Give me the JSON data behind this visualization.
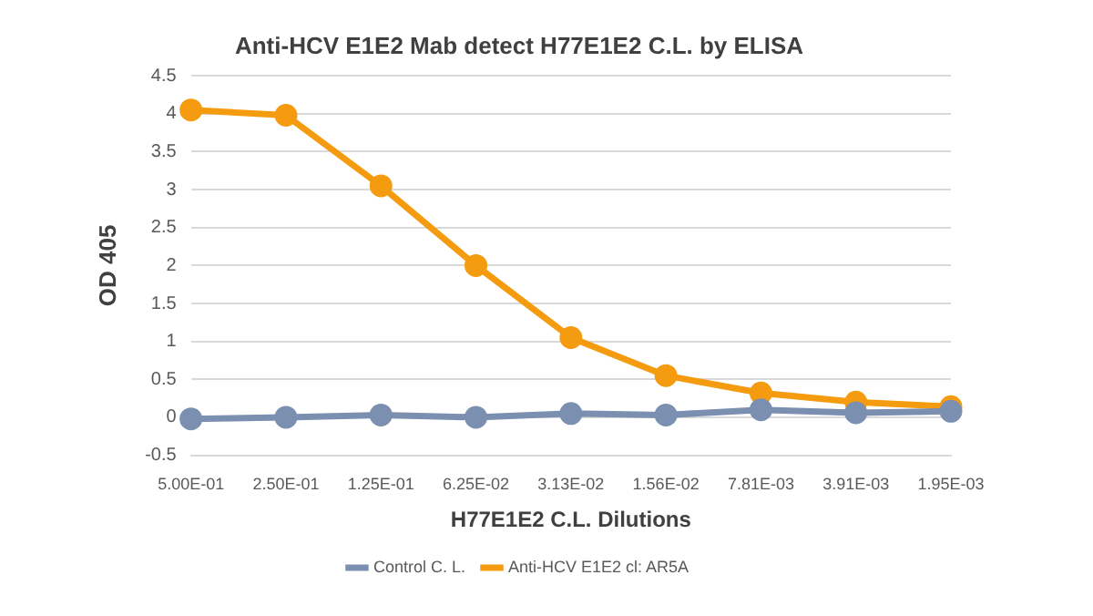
{
  "chart_data": {
    "type": "line",
    "title": "Anti-HCV E1E2 Mab detect H77E1E2 C.L. by ELISA",
    "xlabel": "H77E1E2 C.L. Dilutions",
    "ylabel": "OD 405",
    "categories": [
      "5.00E-01",
      "2.50E-01",
      "1.25E-01",
      "6.25E-02",
      "3.13E-02",
      "1.56E-02",
      "7.81E-03",
      "3.91E-03",
      "1.95E-03"
    ],
    "series": [
      {
        "name": "Control C. L.",
        "color": "#7b8fb0",
        "values": [
          -0.02,
          0,
          0.03,
          0,
          0.05,
          0.03,
          0.1,
          0.06,
          0.08
        ]
      },
      {
        "name": "Anti-HCV E1E2 cl: AR5A",
        "color": "#f59b0f",
        "values": [
          4.05,
          3.98,
          3.05,
          2.0,
          1.05,
          0.55,
          0.32,
          0.2,
          0.14
        ]
      }
    ],
    "ylim": [
      -0.5,
      4.5
    ],
    "yticks": [
      -0.5,
      0,
      0.5,
      1,
      1.5,
      2,
      2.5,
      3,
      3.5,
      4,
      4.5
    ],
    "grid": "y",
    "legend": "bottom",
    "marker": "circle",
    "line_style": "solid"
  }
}
